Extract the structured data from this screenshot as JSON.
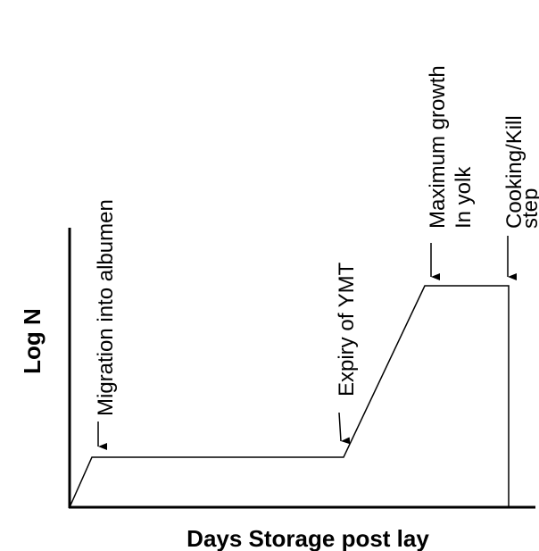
{
  "axes": {
    "y_label": "Log N",
    "x_label": "Days Storage post lay"
  },
  "annotations": [
    {
      "lines": [
        "Migration into albumen"
      ]
    },
    {
      "lines": [
        "Expiry of YMT"
      ]
    },
    {
      "lines": [
        "Maximum growth",
        "In yolk"
      ]
    },
    {
      "lines": [
        "Cooking/Kill",
        "step"
      ]
    }
  ]
}
